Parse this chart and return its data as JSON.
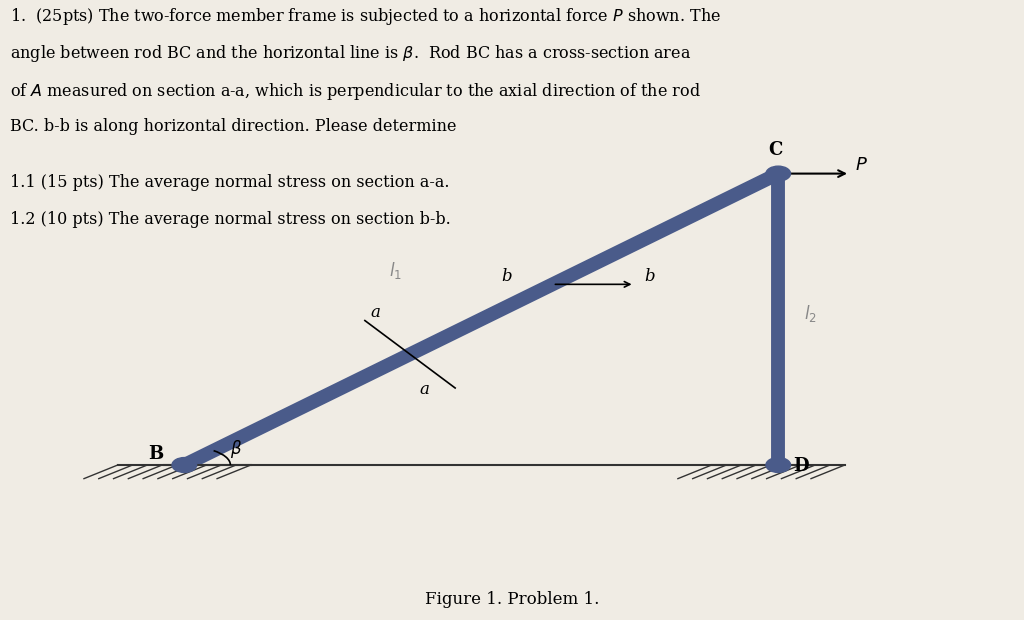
{
  "background_color": "#f0ece4",
  "text_color": "#000000",
  "title_text": "Figure 1. Problem 1.",
  "problem_text_line1": "1.  (25pts) The two-force member frame is subjected to a horizontal force $P$ shown. The",
  "problem_text_line2": "angle between rod BC and the horizontal line is $\\beta$.  Rod BC has a cross-section area",
  "problem_text_line3": "of $A$ measured on section a-a, which is perpendicular to the axial direction of the rod",
  "problem_text_line4": "BC. b-b is along horizontal direction. Please determine",
  "sub1": "1.1 (15 pts) The average normal stress on section a-a.",
  "sub2": "1.2 (10 pts) The average normal stress on section b-b.",
  "B": [
    0.18,
    0.25
  ],
  "C": [
    0.76,
    0.72
  ],
  "D": [
    0.76,
    0.25
  ],
  "rod_color": "#4a5b8a",
  "rod_linewidth": 10,
  "ground_color": "#333333",
  "hatch_color": "#333333",
  "L1_label": "$l_1$",
  "L2_label": "$l_2$",
  "beta_label": "$\\beta$",
  "P_label": "$P$",
  "a_label": "a",
  "b_label": "b"
}
